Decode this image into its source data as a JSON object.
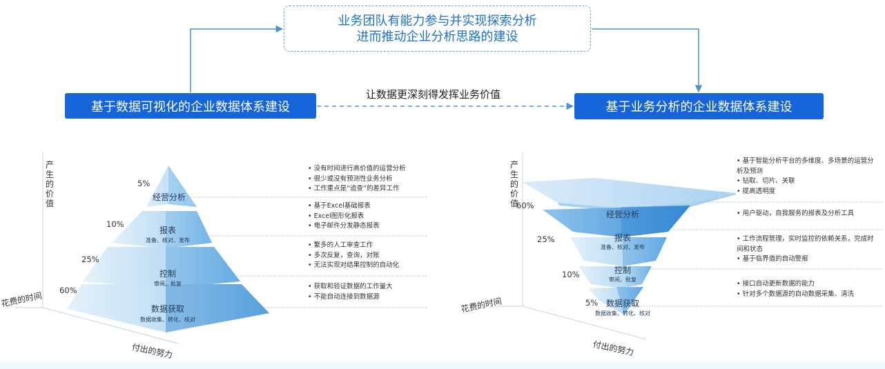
{
  "top_box": {
    "line1": "业务团队有能力参与并实现探索分析",
    "line2": "进而推动企业分析思路的建设"
  },
  "left_box": "基于数据可视化的企业数据体系建设",
  "right_box": "基于业务分析的企业数据体系建设",
  "middle_label": "让数据更深刻得发挥业务价值",
  "axes": {
    "value": "产\n生\n的\n价\n值",
    "time": "花费的时间",
    "effort": "付出的努力"
  },
  "left_pyramid": {
    "layers": [
      {
        "title": "经营分析",
        "sub": "",
        "pct": "5%"
      },
      {
        "title": "报表",
        "sub": "准备、核对、发布",
        "pct": "10%"
      },
      {
        "title": "控制",
        "sub": "审阅、批复",
        "pct": "25%"
      },
      {
        "title": "数据获取",
        "sub": "数据收集、转化、核对",
        "pct": "60%"
      }
    ],
    "notes": [
      [
        "• 没有时间进行高价值的运营分析",
        "• 很少或没有预测性业务分析",
        "• 工作重点是“追查”的差异工作"
      ],
      [
        "• 基于Excel基础报表",
        "• Excel图形化报表",
        "• 电子邮件分发静态报表"
      ],
      [
        "• 繁多的人工审查工作",
        "• 多次反复，查询，对账",
        "• 无法实现对结果控制的自动化"
      ],
      [
        "• 获取和验证数据的工作量大",
        "• 不能自动连接到数据源"
      ]
    ]
  },
  "right_pyramid": {
    "layers": [
      {
        "title": "经营分析",
        "sub": "",
        "pct": "60%"
      },
      {
        "title": "报表",
        "sub": "准备、核对、发布",
        "pct": "25%"
      },
      {
        "title": "控制",
        "sub": "审阅、批复",
        "pct": "10%"
      },
      {
        "title": "数据获取",
        "sub": "数据收集、转化、核对",
        "pct": "5%"
      }
    ],
    "notes": [
      [
        "• 基于智能分析平台的多维度、多场景的运营分",
        "   析及预测",
        "• 钻取、切片、关联",
        "• 提高透明度"
      ],
      [
        "• 用户驱动，自我服务的报表及分析工具"
      ],
      [
        "• 工作流程管理，实时监控的依赖关系，完成时",
        "   间和状态",
        "• 基于临界值的自动警报"
      ],
      [
        "• 接口自动更新数据的能力",
        "• 针对多个数据源的自动数据采集、清洗"
      ]
    ]
  },
  "colors": {
    "primary": "#1565d8",
    "accent": "#5ea6d8",
    "layer_light": "#cfe6f7",
    "layer_dark": "#5aa7e0"
  }
}
